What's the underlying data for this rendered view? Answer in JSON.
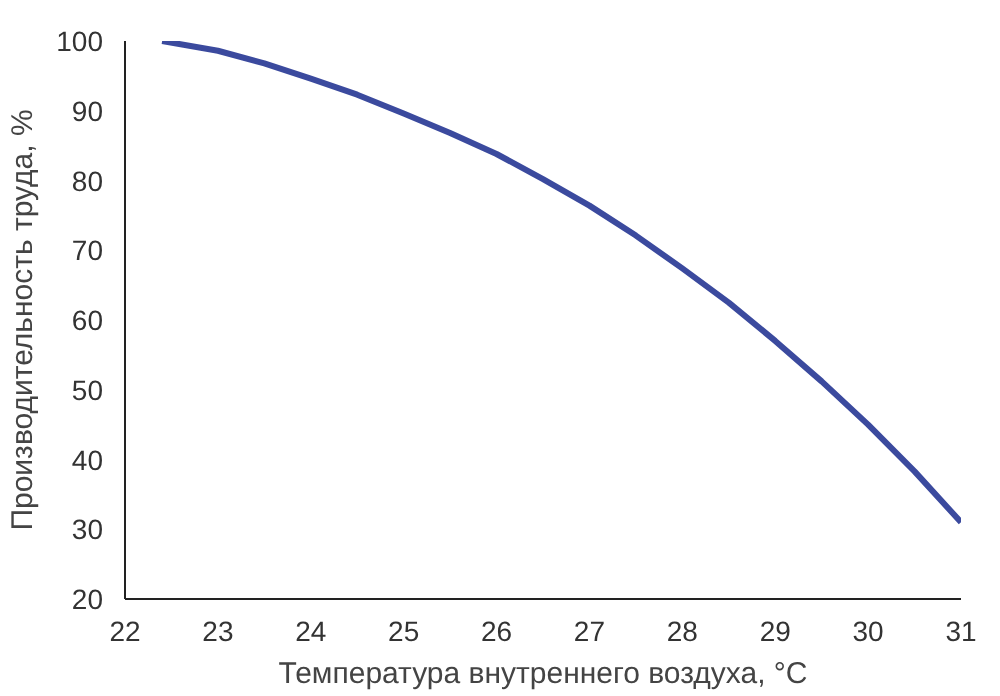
{
  "chart_data": {
    "type": "line",
    "xlabel": "Температура внутреннего воздуха, °C",
    "ylabel": "Производительность труда, %",
    "x": [
      22.4,
      23,
      23.5,
      24,
      24.5,
      25,
      25.5,
      26,
      26.5,
      27,
      27.5,
      28,
      28.5,
      29,
      29.5,
      30,
      30.5,
      31
    ],
    "series": [
      {
        "color": "#3b4a9e",
        "values": [
          100,
          98.6,
          96.8,
          94.6,
          92.3,
          89.6,
          86.8,
          83.8,
          80.2,
          76.4,
          72.1,
          67.4,
          62.5,
          57.0,
          51.2,
          45.0,
          38.3,
          31.0
        ]
      }
    ],
    "xlim": [
      22,
      31
    ],
    "ylim": [
      20,
      100
    ],
    "xticks": [
      22,
      23,
      24,
      25,
      26,
      27,
      28,
      29,
      30,
      31
    ],
    "yticks": [
      20,
      30,
      40,
      50,
      60,
      70,
      80,
      90,
      100
    ],
    "grid": false,
    "marker": "none",
    "line_style": "solid"
  }
}
